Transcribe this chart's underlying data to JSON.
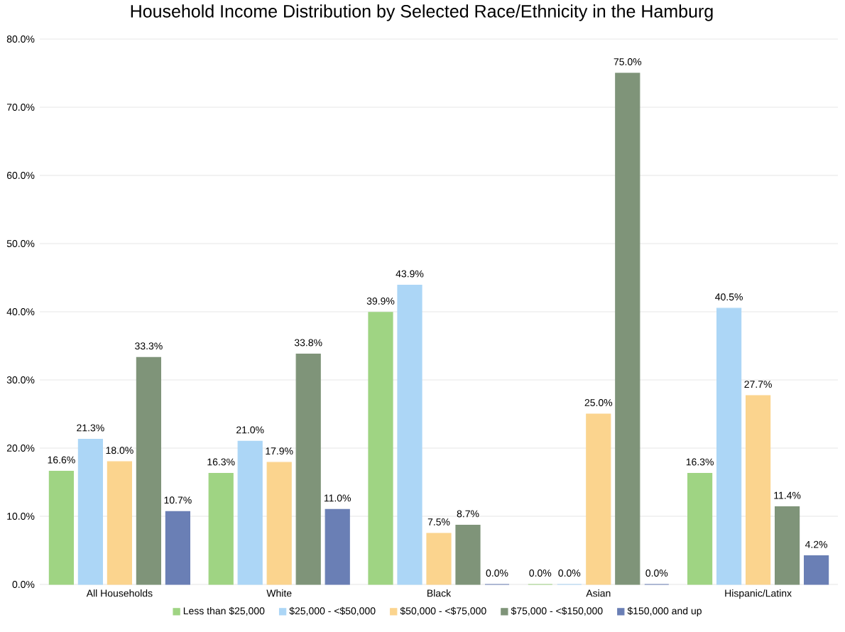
{
  "chart_data": {
    "type": "bar",
    "title": "Household Income Distribution by Selected Race/Ethnicity in the Hamburg",
    "categories": [
      "All Households",
      "White",
      "Black",
      "Asian",
      "Hispanic/Latinx"
    ],
    "series": [
      {
        "name": "Less than $25,000",
        "color": "#9fd483",
        "values": [
          16.6,
          16.3,
          39.9,
          0.0,
          16.3
        ],
        "value_labels": [
          "16.6%",
          "16.3%",
          "39.9%",
          "0.0%",
          "16.3%"
        ]
      },
      {
        "name": "$25,000 - <$50,000",
        "color": "#acd6f6",
        "values": [
          21.3,
          21.0,
          43.9,
          0.0,
          40.5
        ],
        "value_labels": [
          "21.3%",
          "21.0%",
          "43.9%",
          "0.0%",
          "40.5%"
        ]
      },
      {
        "name": "$50,000 - <$75,000",
        "color": "#fbd48e",
        "values": [
          18.0,
          17.9,
          7.5,
          25.0,
          27.7
        ],
        "value_labels": [
          "18.0%",
          "17.9%",
          "7.5%",
          "25.0%",
          "27.7%"
        ]
      },
      {
        "name": "$75,000 - <$150,000",
        "color": "#7f9479",
        "values": [
          33.3,
          33.8,
          8.7,
          75.0,
          11.4
        ],
        "value_labels": [
          "33.3%",
          "33.8%",
          "8.7%",
          "75.0%",
          "11.4%"
        ]
      },
      {
        "name": "$150,000 and up",
        "color": "#6a7fb5",
        "values": [
          10.7,
          11.0,
          0.0,
          0.0,
          4.2
        ],
        "value_labels": [
          "10.7%",
          "11.0%",
          "0.0%",
          "0.0%",
          "4.2%"
        ]
      }
    ],
    "ylim": [
      0,
      80
    ],
    "yticks": [
      {
        "value": 0,
        "label": "0.0%"
      },
      {
        "value": 10,
        "label": "10.0%"
      },
      {
        "value": 20,
        "label": "20.0%"
      },
      {
        "value": 30,
        "label": "30.0%"
      },
      {
        "value": 40,
        "label": "40.0%"
      },
      {
        "value": 50,
        "label": "50.0%"
      },
      {
        "value": 60,
        "label": "60.0%"
      },
      {
        "value": 70,
        "label": "70.0%"
      },
      {
        "value": 80,
        "label": "80.0%"
      }
    ],
    "grid": "y",
    "legend": "bottom"
  }
}
